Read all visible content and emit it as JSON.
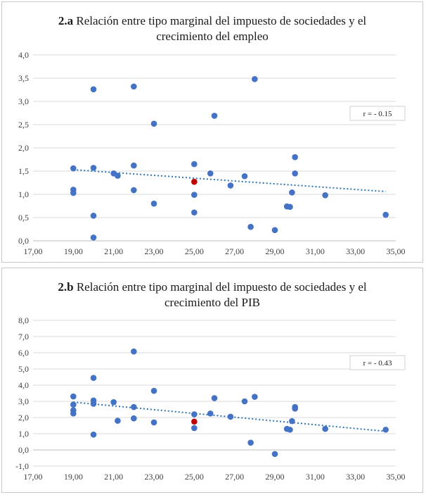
{
  "chart_data": [
    {
      "id": "a",
      "type": "scatter",
      "title_bold": "2.a",
      "title_line1": " Relación entre tipo marginal del impuesto de sociedades y el",
      "title_line2": "crecimiento del empleo",
      "annotation": "r = - 0.15",
      "xlim": [
        17,
        35
      ],
      "ylim": [
        0,
        4
      ],
      "x_ticks": [
        "17,00",
        "19,00",
        "21,00",
        "23,00",
        "25,00",
        "27,00",
        "29,00",
        "31,00",
        "33,00",
        "35,00"
      ],
      "y_ticks": [
        "0,0",
        "0,5",
        "1,0",
        "1,5",
        "2,0",
        "2,5",
        "3,0",
        "3,5",
        "4,0"
      ],
      "grid": true,
      "point_color": "#4472c4",
      "highlight_color": "#c00000",
      "trend_color": "#2e75b6",
      "trendline": {
        "x1": 19,
        "y1": 1.53,
        "x2": 34.5,
        "y2": 1.06
      },
      "points": [
        {
          "x": 19.0,
          "y": 1.56
        },
        {
          "x": 19.0,
          "y": 1.1
        },
        {
          "x": 19.0,
          "y": 1.03
        },
        {
          "x": 20.0,
          "y": 3.26
        },
        {
          "x": 20.0,
          "y": 1.57
        },
        {
          "x": 20.0,
          "y": 0.54
        },
        {
          "x": 20.0,
          "y": 0.07
        },
        {
          "x": 21.0,
          "y": 1.45
        },
        {
          "x": 21.2,
          "y": 1.4
        },
        {
          "x": 22.0,
          "y": 3.32
        },
        {
          "x": 22.0,
          "y": 1.62
        },
        {
          "x": 22.0,
          "y": 1.09
        },
        {
          "x": 23.0,
          "y": 2.52
        },
        {
          "x": 23.0,
          "y": 0.8
        },
        {
          "x": 25.0,
          "y": 1.65
        },
        {
          "x": 25.0,
          "y": 0.99
        },
        {
          "x": 25.0,
          "y": 0.61
        },
        {
          "x": 25.8,
          "y": 1.45
        },
        {
          "x": 26.0,
          "y": 2.69
        },
        {
          "x": 26.8,
          "y": 1.19
        },
        {
          "x": 27.5,
          "y": 1.39
        },
        {
          "x": 27.8,
          "y": 0.3
        },
        {
          "x": 28.0,
          "y": 3.48
        },
        {
          "x": 29.0,
          "y": 0.23
        },
        {
          "x": 29.6,
          "y": 0.74
        },
        {
          "x": 29.75,
          "y": 0.73
        },
        {
          "x": 29.85,
          "y": 1.04
        },
        {
          "x": 30.0,
          "y": 1.8
        },
        {
          "x": 30.0,
          "y": 1.45
        },
        {
          "x": 31.5,
          "y": 0.98
        },
        {
          "x": 34.5,
          "y": 0.56
        }
      ],
      "highlight": {
        "x": 25.0,
        "y": 1.27
      }
    },
    {
      "id": "b",
      "type": "scatter",
      "title_bold": "2.b",
      "title_line1": " Relación entre tipo marginal del impuesto de sociedades y el",
      "title_line2": "crecimiento del PIB",
      "annotation": "r = - 0.43",
      "xlim": [
        17,
        35
      ],
      "ylim": [
        -1,
        8
      ],
      "x_ticks": [
        "17,00",
        "19,00",
        "21,00",
        "23,00",
        "25,00",
        "27,00",
        "29,00",
        "31,00",
        "33,00",
        "35,00"
      ],
      "y_ticks": [
        "-1,0",
        "0,0",
        "1,0",
        "2,0",
        "3,0",
        "4,0",
        "5,0",
        "6,0",
        "7,0",
        "8,0"
      ],
      "grid": true,
      "point_color": "#4472c4",
      "highlight_color": "#c00000",
      "trend_color": "#2e75b6",
      "trendline": {
        "x1": 19,
        "y1": 2.95,
        "x2": 34.5,
        "y2": 1.15
      },
      "points": [
        {
          "x": 19.0,
          "y": 3.3
        },
        {
          "x": 19.0,
          "y": 2.8
        },
        {
          "x": 19.0,
          "y": 2.45
        },
        {
          "x": 19.0,
          "y": 2.25
        },
        {
          "x": 20.0,
          "y": 4.45
        },
        {
          "x": 20.0,
          "y": 3.05
        },
        {
          "x": 20.0,
          "y": 2.85
        },
        {
          "x": 20.0,
          "y": 0.95
        },
        {
          "x": 21.0,
          "y": 2.95
        },
        {
          "x": 21.2,
          "y": 1.8
        },
        {
          "x": 22.0,
          "y": 6.08
        },
        {
          "x": 22.0,
          "y": 2.65
        },
        {
          "x": 22.0,
          "y": 1.95
        },
        {
          "x": 23.0,
          "y": 3.65
        },
        {
          "x": 23.0,
          "y": 1.7
        },
        {
          "x": 25.0,
          "y": 2.2
        },
        {
          "x": 25.0,
          "y": 1.35
        },
        {
          "x": 25.8,
          "y": 2.25
        },
        {
          "x": 26.0,
          "y": 3.2
        },
        {
          "x": 26.8,
          "y": 2.05
        },
        {
          "x": 27.5,
          "y": 3.0
        },
        {
          "x": 27.8,
          "y": 0.45
        },
        {
          "x": 28.0,
          "y": 3.28
        },
        {
          "x": 29.0,
          "y": -0.25
        },
        {
          "x": 29.6,
          "y": 1.3
        },
        {
          "x": 29.75,
          "y": 1.25
        },
        {
          "x": 29.85,
          "y": 1.78
        },
        {
          "x": 30.0,
          "y": 2.65
        },
        {
          "x": 30.0,
          "y": 2.55
        },
        {
          "x": 31.5,
          "y": 1.3
        },
        {
          "x": 34.5,
          "y": 1.25
        }
      ],
      "highlight": {
        "x": 25.0,
        "y": 1.75
      }
    }
  ]
}
